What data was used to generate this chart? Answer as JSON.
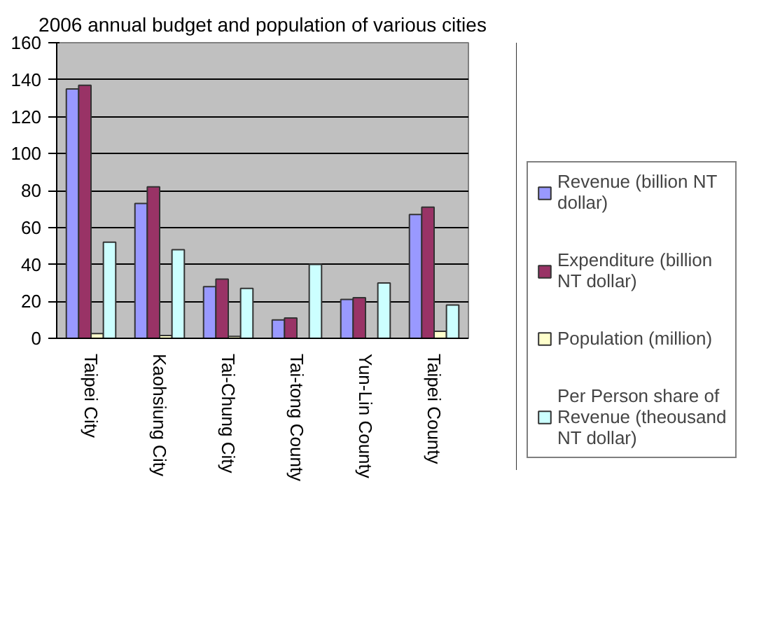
{
  "chart_data": {
    "type": "bar",
    "title": "2006 annual budget and population of various cities",
    "categories": [
      "Taipei City",
      "Kaohsiung City",
      "Tai-Chung City",
      "Tai-tong County",
      "Yun-Lin County",
      "Taipei County"
    ],
    "series": [
      {
        "name": "Revenue (billion NT dollar)",
        "color": "#9999ff",
        "values": [
          135,
          73,
          28,
          10,
          21,
          67
        ]
      },
      {
        "name": "Expenditure (billion NT dollar)",
        "color": "#993366",
        "values": [
          137,
          82,
          32,
          11,
          22,
          71
        ]
      },
      {
        "name": "Population (million)",
        "color": "#ffffcc",
        "values": [
          2.6,
          1.5,
          1.0,
          null,
          null,
          3.8
        ]
      },
      {
        "name": "Per Person share of Revenue (theousand NT dollar)",
        "color": "#ccffff",
        "values": [
          52,
          48,
          27,
          40,
          30,
          18
        ]
      }
    ],
    "ylim": [
      0,
      160
    ],
    "yticks": [
      0,
      20,
      40,
      60,
      80,
      100,
      120,
      140,
      160
    ],
    "grid": "y",
    "legend": "right"
  }
}
